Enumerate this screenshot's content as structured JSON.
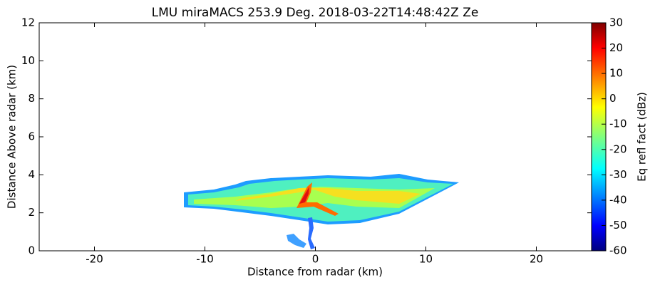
{
  "chart_data": {
    "type": "heatmap",
    "title": "LMU miraMACS 253.9 Deg. 2018-03-22T14:48:42Z  Ze",
    "x_label": "Distance from radar (km)",
    "y_label": "Distance Above radar  (km)",
    "xlim": [
      -25,
      25
    ],
    "xticks": [
      -20,
      -10,
      0,
      10,
      20
    ],
    "ylim": [
      0,
      12
    ],
    "yticks": [
      0,
      2,
      4,
      6,
      8,
      10,
      12
    ],
    "colorbar": {
      "label": "Eq refl fact (dBz)",
      "lim": [
        -60,
        30
      ],
      "ticks": [
        -60,
        -50,
        -40,
        -30,
        -20,
        -10,
        0,
        10,
        20,
        30
      ],
      "colormap": "jet"
    }
  }
}
